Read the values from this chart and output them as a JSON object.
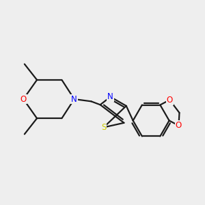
{
  "bg_color": "#eeeeee",
  "bond_color": "#1a1a1a",
  "N_color": "#0000ff",
  "O_color": "#ff0000",
  "S_color": "#cccc00",
  "line_width": 1.6,
  "fig_w": 3.0,
  "fig_h": 3.0,
  "dpi": 100,
  "xlim": [
    0,
    10
  ],
  "ylim": [
    0,
    10
  ]
}
